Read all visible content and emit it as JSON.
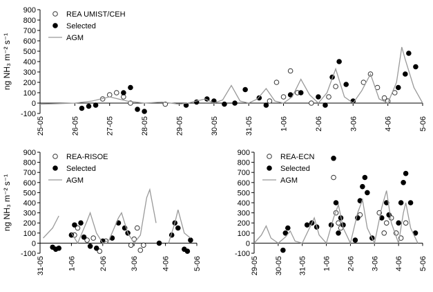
{
  "chart_data": [
    {
      "type": "scatter",
      "ylabel": "ng NH₃ m⁻² s⁻¹",
      "xlim": [
        0,
        11
      ],
      "ylim": [
        -100,
        900
      ],
      "xticks": [
        {
          "value": 0,
          "label": "25-05"
        },
        {
          "value": 1,
          "label": "26-05"
        },
        {
          "value": 2,
          "label": "27-05"
        },
        {
          "value": 3,
          "label": "28-05"
        },
        {
          "value": 4,
          "label": "29-05"
        },
        {
          "value": 5,
          "label": "30-05"
        },
        {
          "value": 6,
          "label": "31-05"
        },
        {
          "value": 7,
          "label": "1-06"
        },
        {
          "value": 8,
          "label": "2-06"
        },
        {
          "value": 9,
          "label": "3-06"
        },
        {
          "value": 10,
          "label": "4-06"
        },
        {
          "value": 11,
          "label": "5-06"
        }
      ],
      "yticks": [
        -100,
        0,
        100,
        200,
        300,
        400,
        500,
        600,
        700,
        800,
        900
      ],
      "legend": "upper left",
      "series": [
        {
          "name": "REA UMIST/CEH",
          "style": "open",
          "color": "#333333",
          "x": [
            1.8,
            2.0,
            2.2,
            2.4,
            2.6,
            3.6,
            6.6,
            6.8,
            7.0,
            7.2,
            7.4,
            7.8,
            8.3,
            8.5,
            9.3,
            9.5,
            9.7,
            9.9,
            10.0,
            10.2
          ],
          "values": [
            40,
            80,
            100,
            60,
            0,
            -10,
            20,
            200,
            60,
            310,
            100,
            0,
            60,
            160,
            200,
            280,
            150,
            50,
            20,
            100
          ]
        },
        {
          "name": "Selected",
          "style": "filled",
          "color": "#000000",
          "x": [
            1.2,
            1.4,
            1.6,
            2.4,
            2.6,
            2.8,
            3.0,
            4.2,
            4.5,
            4.8,
            5.0,
            5.3,
            5.6,
            5.9,
            6.3,
            6.5,
            7.2,
            7.5,
            8.0,
            8.2,
            8.4,
            8.6,
            8.8,
            9.0,
            10.3,
            10.5,
            10.6,
            10.8
          ],
          "values": [
            -50,
            -30,
            -20,
            100,
            150,
            -60,
            -80,
            -20,
            10,
            40,
            20,
            -10,
            0,
            130,
            50,
            -20,
            80,
            100,
            60,
            -20,
            250,
            400,
            180,
            20,
            150,
            280,
            480,
            350
          ]
        },
        {
          "name": "AGM",
          "style": "line",
          "color": "#999999",
          "x": [
            0,
            0.5,
            1,
            1.5,
            2,
            2.5,
            3,
            3.5,
            4,
            4.25,
            4.5,
            4.75,
            5,
            5.25,
            5.5,
            5.75,
            6,
            6.25,
            6.5,
            6.75,
            7,
            7.25,
            7.5,
            7.75,
            8,
            8.25,
            8.5,
            8.75,
            9,
            9.25,
            9.5,
            9.75,
            10,
            10.25,
            10.4,
            10.5,
            10.75,
            11
          ],
          "values": [
            -10,
            -5,
            0,
            20,
            60,
            20,
            0,
            10,
            -10,
            0,
            20,
            40,
            0,
            30,
            170,
            20,
            0,
            40,
            140,
            20,
            0,
            60,
            230,
            80,
            0,
            100,
            330,
            60,
            0,
            120,
            280,
            40,
            0,
            200,
            540,
            420,
            150,
            0
          ]
        }
      ]
    },
    {
      "type": "scatter",
      "ylabel": "ng NH₃ m⁻² s⁻¹",
      "xlim": [
        0,
        5
      ],
      "ylim": [
        -100,
        900
      ],
      "xticks": [
        {
          "value": 0,
          "label": "31-05"
        },
        {
          "value": 1,
          "label": "1-06"
        },
        {
          "value": 2,
          "label": "2-06"
        },
        {
          "value": 3,
          "label": "3-06"
        },
        {
          "value": 4,
          "label": "4-06"
        },
        {
          "value": 5,
          "label": "5-06"
        }
      ],
      "yticks": [
        -100,
        0,
        100,
        200,
        300,
        400,
        500,
        600,
        700,
        800,
        900
      ],
      "legend": "upper left",
      "series": [
        {
          "name": "REA-RISOE",
          "style": "open",
          "color": "#333333",
          "x": [
            1.1,
            1.2,
            1.5,
            1.7,
            1.9,
            2.1,
            2.9,
            3.0,
            3.1,
            3.2,
            3.3
          ],
          "values": [
            80,
            150,
            30,
            50,
            -80,
            20,
            -20,
            40,
            150,
            -70,
            -20
          ]
        },
        {
          "name": "Selected",
          "style": "filled",
          "color": "#000000",
          "x": [
            0.4,
            0.5,
            0.6,
            1.0,
            1.1,
            1.3,
            1.4,
            1.6,
            1.8,
            2.0,
            2.3,
            2.5,
            2.7,
            2.8,
            3.8,
            4.2,
            4.3,
            4.4,
            4.6,
            4.7,
            4.8
          ],
          "values": [
            -40,
            -60,
            -50,
            80,
            180,
            200,
            60,
            -30,
            -50,
            20,
            50,
            200,
            150,
            100,
            0,
            80,
            200,
            150,
            -60,
            -80,
            30
          ]
        },
        {
          "name": "AGM",
          "style": "line",
          "color": "#999999",
          "x": [
            0.1,
            0.4,
            0.6,
            0.8,
            1.0,
            1.2,
            1.5,
            1.6,
            1.8,
            2.0,
            2.2,
            2.5,
            2.6,
            2.8,
            3.0,
            3.2,
            3.4,
            3.5,
            3.7,
            3.9,
            4.1,
            4.3,
            4.4,
            4.6,
            4.8
          ],
          "values": [
            50,
            150,
            270,
            null,
            100,
            0,
            220,
            300,
            100,
            0,
            30,
            250,
            300,
            100,
            0,
            80,
            450,
            530,
            200,
            null,
            0,
            200,
            330,
            100,
            50
          ]
        }
      ]
    },
    {
      "type": "scatter",
      "xlim": [
        0,
        7
      ],
      "ylim": [
        -100,
        900
      ],
      "xticks": [
        {
          "value": 0,
          "label": "29-05"
        },
        {
          "value": 1,
          "label": "30-05"
        },
        {
          "value": 2,
          "label": "31-05"
        },
        {
          "value": 3,
          "label": "1-06"
        },
        {
          "value": 4,
          "label": "2-06"
        },
        {
          "value": 5,
          "label": "3-06"
        },
        {
          "value": 6,
          "label": "4-06"
        },
        {
          "value": 7,
          "label": "5-06"
        }
      ],
      "yticks": [
        -100,
        0,
        100,
        200,
        300,
        400,
        500,
        600,
        700,
        800,
        900
      ],
      "legend": "upper left",
      "series": [
        {
          "name": "REA-ECN",
          "style": "open",
          "color": "#333333",
          "x": [
            3.3,
            3.4,
            3.5,
            3.6,
            4.4,
            5.2,
            5.4,
            5.5,
            5.7,
            5.9,
            6.1,
            6.3
          ],
          "values": [
            650,
            300,
            200,
            150,
            280,
            300,
            100,
            200,
            250,
            100,
            50,
            200
          ]
        },
        {
          "name": "Selected",
          "style": "filled",
          "color": "#000000",
          "x": [
            1.2,
            1.3,
            1.4,
            2.2,
            2.4,
            2.6,
            3.2,
            3.3,
            3.4,
            3.5,
            3.6,
            3.7,
            4.2,
            4.3,
            4.4,
            4.5,
            4.6,
            4.7,
            4.9,
            5.3,
            5.5,
            5.6,
            6.0,
            6.1,
            6.2,
            6.3,
            6.5,
            6.7
          ],
          "values": [
            -70,
            100,
            150,
            180,
            200,
            160,
            180,
            840,
            400,
            100,
            250,
            180,
            30,
            250,
            420,
            560,
            650,
            500,
            50,
            250,
            400,
            280,
            200,
            400,
            600,
            690,
            400,
            100
          ]
        },
        {
          "name": "AGM",
          "style": "line",
          "color": "#999999",
          "x": [
            0,
            0.3,
            0.5,
            0.7,
            1.0,
            1.3,
            1.5,
            1.7,
            2.0,
            2.3,
            2.5,
            2.7,
            3.0,
            3.3,
            3.5,
            3.7,
            4.0,
            4.3,
            4.5,
            4.7,
            5.0,
            5.3,
            5.5,
            5.7,
            6.0,
            6.2,
            6.3,
            6.5,
            6.8
          ],
          "values": [
            0,
            80,
            170,
            50,
            0,
            60,
            120,
            20,
            0,
            150,
            250,
            80,
            0,
            250,
            380,
            150,
            0,
            300,
            430,
            150,
            0,
            350,
            520,
            200,
            0,
            300,
            400,
            150,
            0
          ]
        }
      ]
    }
  ]
}
